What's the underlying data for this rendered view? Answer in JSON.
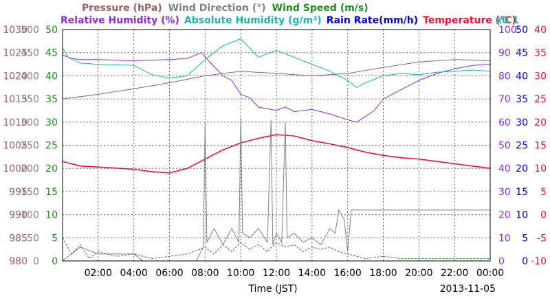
{
  "chart_data": {
    "type": "line",
    "date": "2013-11-05",
    "xlabel": "Time (JST)",
    "x_ticks": [
      "02:00",
      "04:00",
      "06:00",
      "08:00",
      "10:00",
      "12:00",
      "14:00",
      "16:00",
      "18:00",
      "20:00",
      "22:00",
      "00:00"
    ],
    "xlim": [
      "00:00",
      "24:00"
    ],
    "grid": true,
    "legend": {
      "row1": [
        {
          "text": "Pressure (hPa)",
          "color": "#9a5f62"
        },
        {
          "text": "Wind Direction (°)",
          "color": "#808080"
        },
        {
          "text": "Wind Speed (m/s)",
          "color": "#1e8c1e"
        }
      ],
      "row2": [
        {
          "text": "Relative Humidity (%)",
          "color": "#8a2be2"
        },
        {
          "text": "Absolute Humidity (g/m³)",
          "color": "#20b2aa"
        },
        {
          "text": "Rain Rate(mm/h)",
          "color": "#0000cc"
        },
        {
          "text": "Temperature (°C)",
          "color": "#ee1133"
        }
      ],
      "scale_note": {
        "text": "x0.1",
        "color": "#20b2aa"
      }
    },
    "axes": {
      "pressure": {
        "color": "#9a5f62",
        "min": 980,
        "max": 1030,
        "ticks": [
          "980",
          "985",
          "990",
          "995",
          "1000",
          "1005",
          "1010",
          "1015",
          "1020",
          "1025",
          "1030"
        ]
      },
      "wind_direction": {
        "color": "#808080",
        "min": 0,
        "max": 500,
        "ticks": [
          "0",
          "50",
          "100",
          "150",
          "200",
          "250",
          "300",
          "350",
          "400",
          "450",
          "500"
        ]
      },
      "wind_speed": {
        "color": "#1e8c1e",
        "min": 0,
        "max": 50,
        "ticks": [
          "0",
          "5",
          "10",
          "15",
          "20",
          "25",
          "30",
          "35",
          "40",
          "45",
          "50"
        ]
      },
      "humidity": {
        "color": "#8a2be2",
        "min": 0,
        "max": 100,
        "ticks": [
          "0",
          "10",
          "20",
          "30",
          "40",
          "50",
          "60",
          "70",
          "80",
          "90",
          "100"
        ]
      },
      "rain_rate": {
        "color": "#0000cc",
        "min": 0,
        "max": 50,
        "ticks": [
          "0",
          "5",
          "10",
          "15",
          "20",
          "25",
          "30",
          "35",
          "40",
          "45",
          "50"
        ]
      },
      "temperature": {
        "color": "#ee1133",
        "min": -10,
        "max": 40,
        "ticks": [
          "-10",
          "-5",
          "0",
          "5",
          "10",
          "15",
          "20",
          "25",
          "30",
          "35",
          "40"
        ]
      }
    },
    "series": [
      {
        "name": "Pressure (hPa)",
        "axis": "pressure",
        "color": "#9a5f62",
        "points": [
          [
            0,
            1015
          ],
          [
            2,
            1016
          ],
          [
            4,
            1017.2
          ],
          [
            6,
            1018.5
          ],
          [
            8,
            1020
          ],
          [
            10,
            1021
          ],
          [
            12,
            1020.5
          ],
          [
            14,
            1020
          ],
          [
            16,
            1020.5
          ],
          [
            18,
            1021.8
          ],
          [
            20,
            1023
          ],
          [
            22,
            1023.5
          ],
          [
            24,
            1023.3
          ]
        ]
      },
      {
        "name": "Relative Humidity (%)",
        "axis": "humidity",
        "color": "#8a2be2",
        "points": [
          [
            0,
            89
          ],
          [
            0.5,
            87.5
          ],
          [
            1,
            87
          ],
          [
            2,
            87
          ],
          [
            4,
            86.5
          ],
          [
            6,
            87
          ],
          [
            7,
            87.5
          ],
          [
            7.8,
            90
          ],
          [
            8.2,
            86.5
          ],
          [
            9,
            80
          ],
          [
            9.5,
            78
          ],
          [
            10,
            72
          ],
          [
            10.5,
            70.5
          ],
          [
            11,
            66.5
          ],
          [
            12,
            65
          ],
          [
            12.5,
            66.5
          ],
          [
            13,
            64.5
          ],
          [
            14,
            65.5
          ],
          [
            15,
            63.5
          ],
          [
            16,
            61
          ],
          [
            16.5,
            60
          ],
          [
            17,
            62.5
          ],
          [
            17.5,
            65
          ],
          [
            18,
            70
          ],
          [
            19,
            74
          ],
          [
            20,
            78
          ],
          [
            21,
            81
          ],
          [
            22,
            83
          ],
          [
            23,
            84.5
          ],
          [
            24,
            85
          ]
        ]
      },
      {
        "name": "Absolute Humidity (x0.1 g/m³)",
        "axis": "humidity",
        "color": "#20b2aa",
        "points": [
          [
            0,
            92
          ],
          [
            0.3,
            88
          ],
          [
            1,
            85.5
          ],
          [
            2,
            85
          ],
          [
            4,
            84.5
          ],
          [
            5,
            80.5
          ],
          [
            6,
            79
          ],
          [
            7,
            80
          ],
          [
            8,
            87
          ],
          [
            9,
            93
          ],
          [
            10,
            96
          ],
          [
            10.5,
            92
          ],
          [
            11,
            88
          ],
          [
            12,
            91
          ],
          [
            13,
            88
          ],
          [
            14,
            85
          ],
          [
            15,
            82
          ],
          [
            16,
            78
          ],
          [
            16.5,
            75
          ],
          [
            17,
            77
          ],
          [
            18,
            80
          ],
          [
            19,
            81
          ],
          [
            20,
            80.5
          ],
          [
            21,
            81.5
          ],
          [
            22,
            82
          ],
          [
            23,
            82.5
          ],
          [
            24,
            82
          ]
        ]
      },
      {
        "name": "Temperature (°C)",
        "axis": "temperature",
        "color": "#ee1133",
        "points": [
          [
            0,
            11.5
          ],
          [
            1,
            10.5
          ],
          [
            2,
            10.3
          ],
          [
            4,
            9.8
          ],
          [
            5,
            9.3
          ],
          [
            6,
            9
          ],
          [
            7,
            10
          ],
          [
            8,
            12
          ],
          [
            9,
            14
          ],
          [
            10,
            15.5
          ],
          [
            11,
            16.5
          ],
          [
            12,
            17.3
          ],
          [
            13,
            17
          ],
          [
            14,
            16
          ],
          [
            15,
            15.3
          ],
          [
            16,
            14.5
          ],
          [
            17,
            13.5
          ],
          [
            18,
            12.8
          ],
          [
            19,
            12.3
          ],
          [
            20,
            12
          ],
          [
            21,
            11.5
          ],
          [
            22,
            11
          ],
          [
            23,
            10.5
          ],
          [
            24,
            10
          ]
        ]
      },
      {
        "name": "Wind Direction (°)",
        "axis": "wind_direction",
        "color": "#808080",
        "points": [
          [
            0,
            0
          ],
          [
            1,
            30
          ],
          [
            2,
            15
          ],
          [
            3,
            15
          ],
          [
            4,
            15
          ],
          [
            4.5,
            0
          ],
          [
            7.5,
            0
          ],
          [
            7.9,
            30
          ],
          [
            8.0,
            300
          ],
          [
            8.1,
            40
          ],
          [
            8.5,
            70
          ],
          [
            9,
            35
          ],
          [
            9.5,
            70
          ],
          [
            9.9,
            40
          ],
          [
            10.0,
            310
          ],
          [
            10.1,
            60
          ],
          [
            10.5,
            50
          ],
          [
            11,
            70
          ],
          [
            11.5,
            40
          ],
          [
            11.7,
            305
          ],
          [
            11.8,
            35
          ],
          [
            12,
            60
          ],
          [
            12.3,
            40
          ],
          [
            12.5,
            300
          ],
          [
            12.6,
            50
          ],
          [
            13,
            60
          ],
          [
            13.5,
            40
          ],
          [
            14,
            50
          ],
          [
            14.5,
            35
          ],
          [
            15,
            70
          ],
          [
            15.3,
            60
          ],
          [
            15.5,
            110
          ],
          [
            15.8,
            90
          ],
          [
            16,
            20
          ],
          [
            16.2,
            110
          ],
          [
            18,
            110
          ],
          [
            20,
            110
          ],
          [
            22,
            110
          ],
          [
            24,
            110
          ]
        ]
      },
      {
        "name": "Wind Speed (m/s)",
        "axis": "wind_speed",
        "color": "#1e8c1e",
        "points": [
          [
            0,
            5
          ],
          [
            0.5,
            1.5
          ],
          [
            1,
            3.5
          ],
          [
            1.5,
            0.5
          ],
          [
            2,
            2
          ],
          [
            3,
            1
          ],
          [
            4,
            1.5
          ],
          [
            5,
            0.5
          ],
          [
            6,
            1
          ],
          [
            7,
            1.5
          ],
          [
            8,
            3
          ],
          [
            8.5,
            1.5
          ],
          [
            9,
            3.5
          ],
          [
            9.5,
            2
          ],
          [
            10,
            4
          ],
          [
            10.5,
            2.5
          ],
          [
            11,
            3.5
          ],
          [
            11.5,
            2
          ],
          [
            12,
            4
          ],
          [
            12.5,
            3
          ],
          [
            13,
            3.5
          ],
          [
            13.5,
            2
          ],
          [
            14,
            3
          ],
          [
            14.5,
            2.5
          ],
          [
            15,
            3
          ],
          [
            15.5,
            2
          ],
          [
            16,
            1.5
          ],
          [
            17,
            0.5
          ],
          [
            18,
            1
          ],
          [
            19,
            0.5
          ],
          [
            20,
            0.5
          ],
          [
            21,
            0.5
          ],
          [
            22,
            0.5
          ],
          [
            23,
            0.5
          ],
          [
            24,
            0.5
          ]
        ]
      },
      {
        "name": "Rain Rate(mm/h)",
        "axis": "rain_rate",
        "color": "#0000cc",
        "points": [
          [
            0,
            0
          ],
          [
            24,
            0
          ]
        ]
      }
    ]
  }
}
